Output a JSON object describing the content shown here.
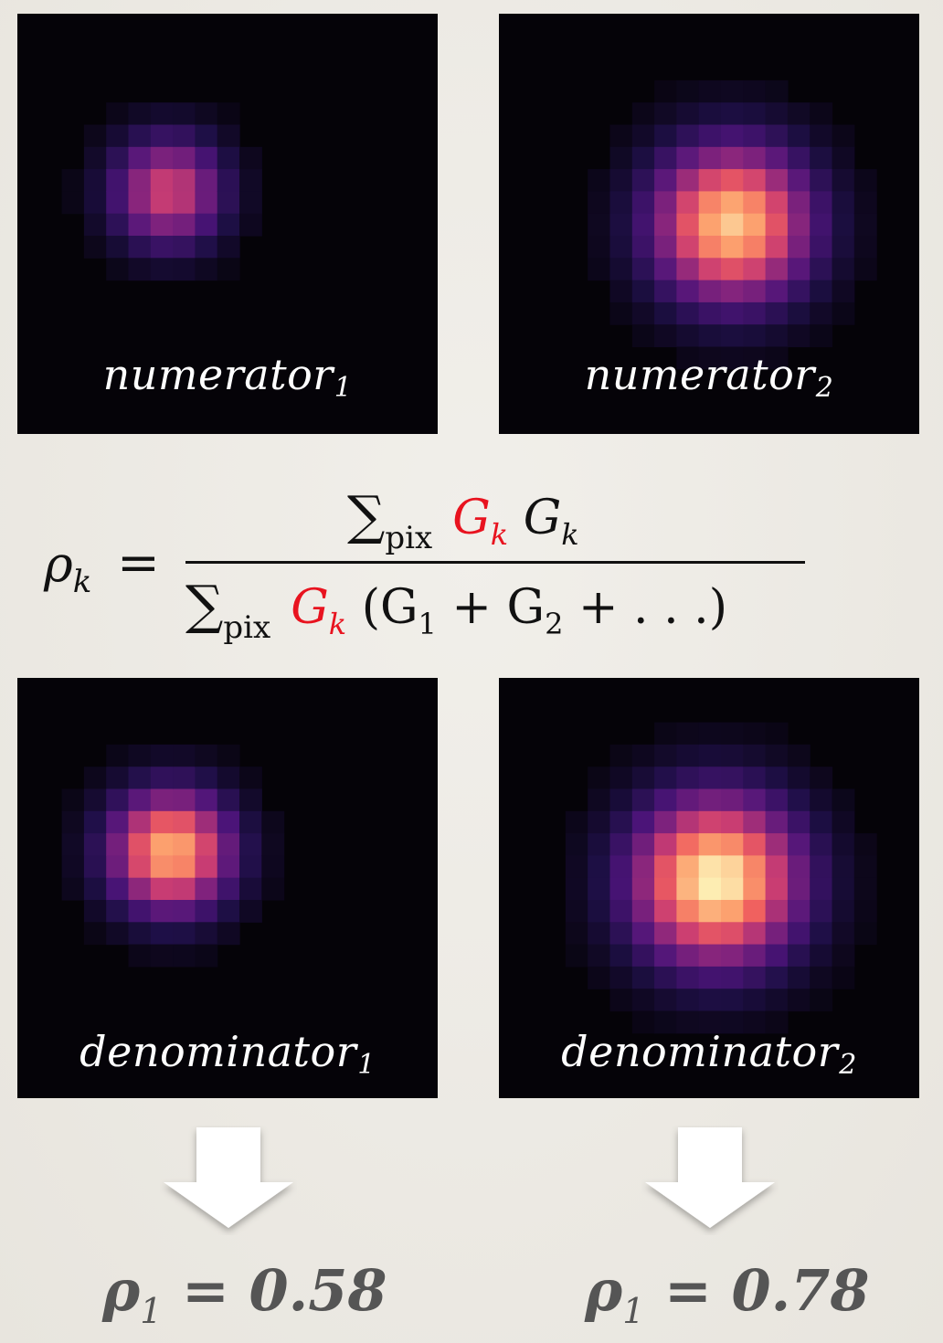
{
  "panels": {
    "num1": {
      "label": "numerator",
      "sub": "1",
      "amplitude": 0.62
    },
    "num2": {
      "label": "numerator",
      "sub": "2",
      "amplitude": 0.92
    },
    "den1": {
      "label": "denominator",
      "sub": "1",
      "amplitude": 0.88
    },
    "den2": {
      "label": "denominator",
      "sub": "2",
      "amplitude": 1.0
    }
  },
  "formula": {
    "lhs": "ρ",
    "lhs_sub": "k",
    "eq": "=",
    "sum": "∑",
    "pix": "pix",
    "G": "G",
    "k": "k",
    "den_tail_open": "(G",
    "den_tail_1": "1",
    "den_tail_plus": " + G",
    "den_tail_2": "2",
    "den_tail_end": " + . . .)"
  },
  "results": [
    {
      "symbol": "ρ",
      "sub": "1",
      "text": " = 0.58"
    },
    {
      "symbol": "ρ",
      "sub": "1",
      "text": " = 0.78"
    }
  ],
  "colors": {
    "accent_red": "#e8131f",
    "panel_bg": "#050308",
    "result_text": "#555555"
  }
}
